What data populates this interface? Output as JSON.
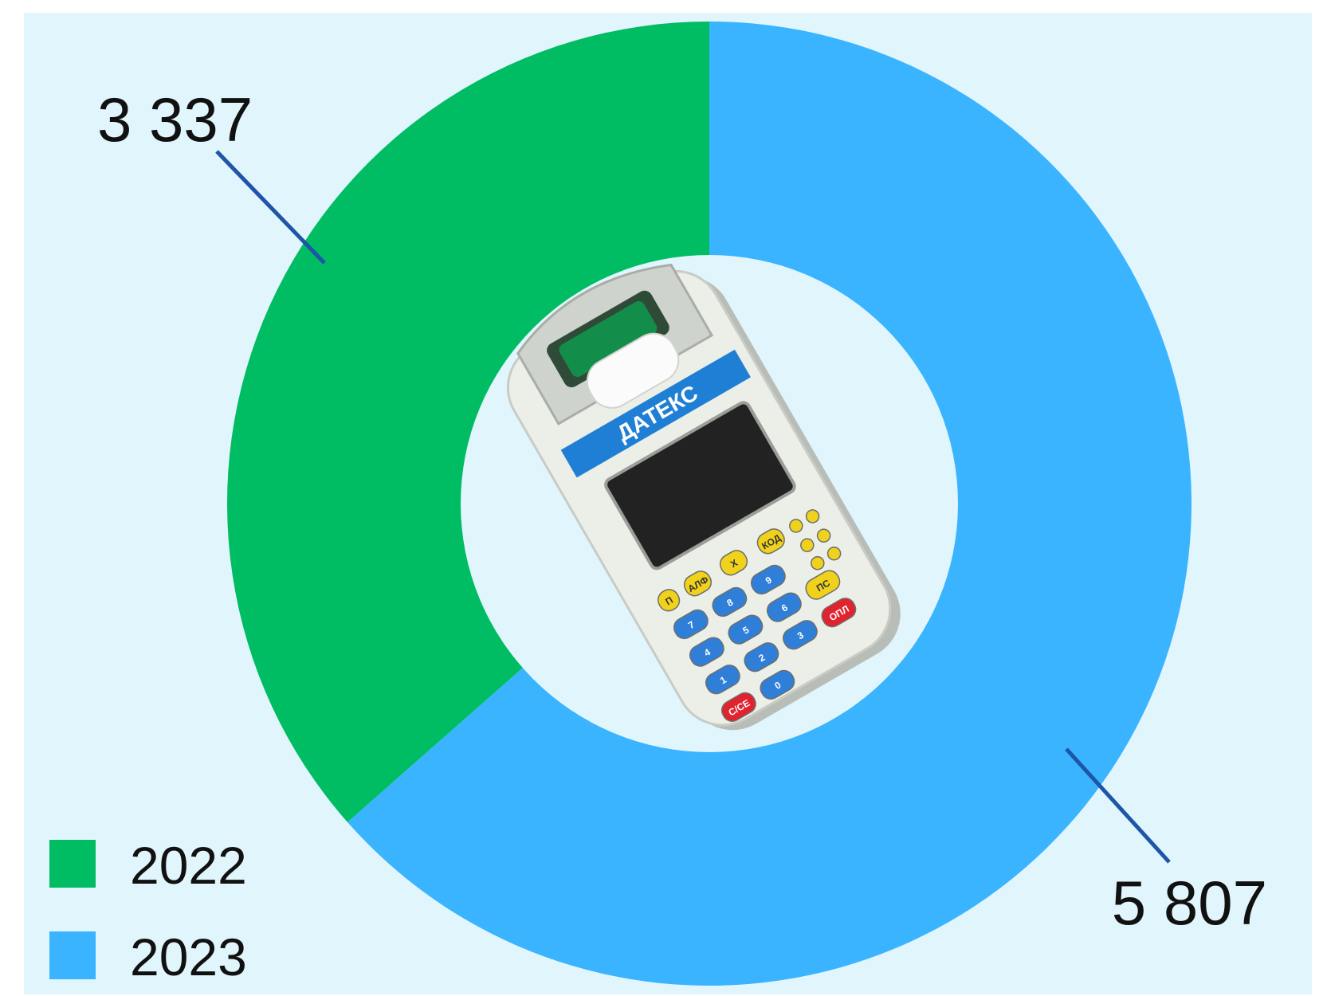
{
  "chart_data": {
    "type": "donut",
    "title": "",
    "slices": [
      {
        "name": "2022",
        "value": 3337,
        "label": "3 337",
        "color": "#00bd63"
      },
      {
        "name": "2023",
        "value": 5807,
        "label": "5 807",
        "color": "#3ab4ff"
      }
    ],
    "legend": {
      "placement": "bottom-left",
      "items": [
        {
          "name": "2022",
          "color": "#00bd63"
        },
        {
          "name": "2023",
          "color": "#3ab4ff"
        }
      ]
    },
    "center_image": "cash-register-datecs",
    "leader_line_color": "#1f55a8",
    "background_color": "#e1f5fc"
  },
  "device": {
    "brand": "ДАТЕКС",
    "keys": [
      "П",
      "АЛФ",
      "Х",
      "КОД",
      "7",
      "8",
      "9",
      "4",
      "5",
      "6",
      "1",
      "2",
      "3",
      "0",
      "ПС",
      "ОПЛ",
      "С/СЕ"
    ]
  }
}
